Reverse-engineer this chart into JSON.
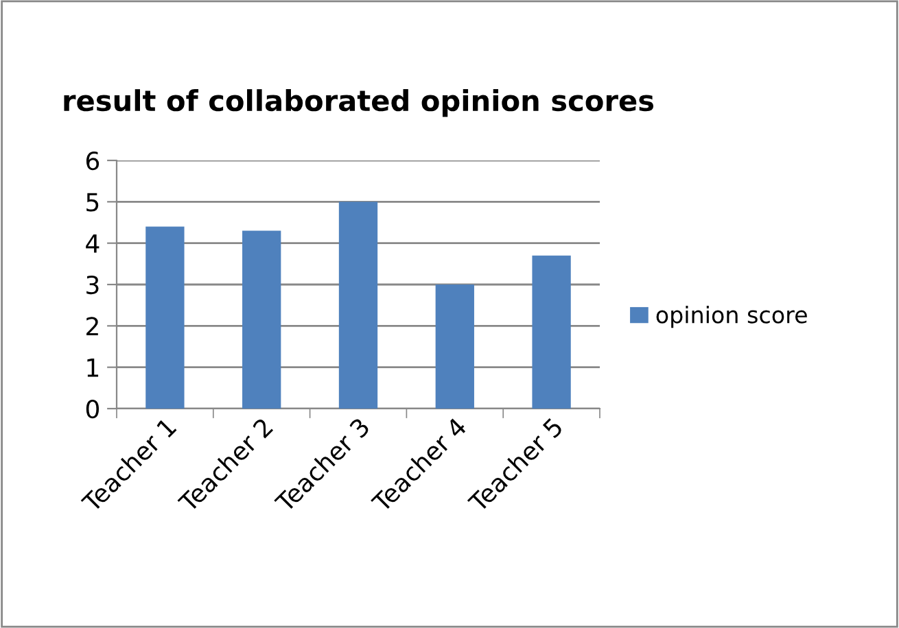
{
  "chart_data": {
    "type": "bar",
    "title": "result of collaborated opinion scores",
    "categories": [
      "Teacher 1",
      "Teacher 2",
      "Teacher 3",
      "Teacher 4",
      "Teacher 5"
    ],
    "series": [
      {
        "name": "opinion score",
        "color": "#4f81bd",
        "values": [
          4.4,
          4.3,
          5.0,
          3.0,
          3.7
        ]
      }
    ],
    "ylim": [
      0,
      6
    ],
    "yticks": [
      0,
      1,
      2,
      3,
      4,
      5,
      6
    ],
    "grid": "y",
    "legend": "right"
  }
}
